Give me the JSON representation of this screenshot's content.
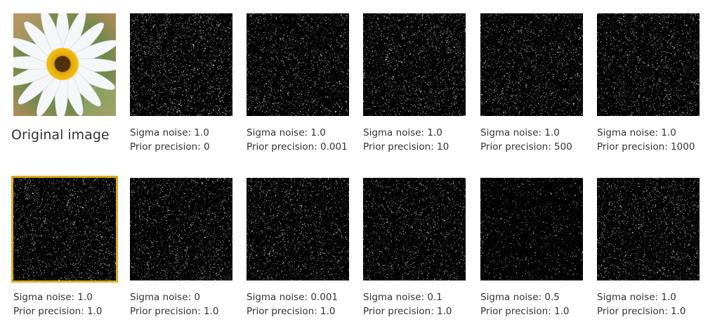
{
  "original": {
    "label": "Original image",
    "icon": "daisy-flower-icon"
  },
  "caption_prefix": {
    "sigma": "Sigma noise: ",
    "prior": "Prior precision: "
  },
  "selected_color": "#d8ad1f",
  "row1": [
    {
      "sigma": "1.0",
      "prior": "0"
    },
    {
      "sigma": "1.0",
      "prior": "0.001"
    },
    {
      "sigma": "1.0",
      "prior": "10"
    },
    {
      "sigma": "1.0",
      "prior": "500"
    },
    {
      "sigma": "1.0",
      "prior": "1000"
    }
  ],
  "row2": [
    {
      "sigma": "1.0",
      "prior": "1.0",
      "selected": true
    },
    {
      "sigma": "0",
      "prior": "1.0"
    },
    {
      "sigma": "0.001",
      "prior": "1.0"
    },
    {
      "sigma": "0.1",
      "prior": "1.0"
    },
    {
      "sigma": "0.5",
      "prior": "1.0"
    },
    {
      "sigma": "1.0",
      "prior": "1.0"
    }
  ]
}
